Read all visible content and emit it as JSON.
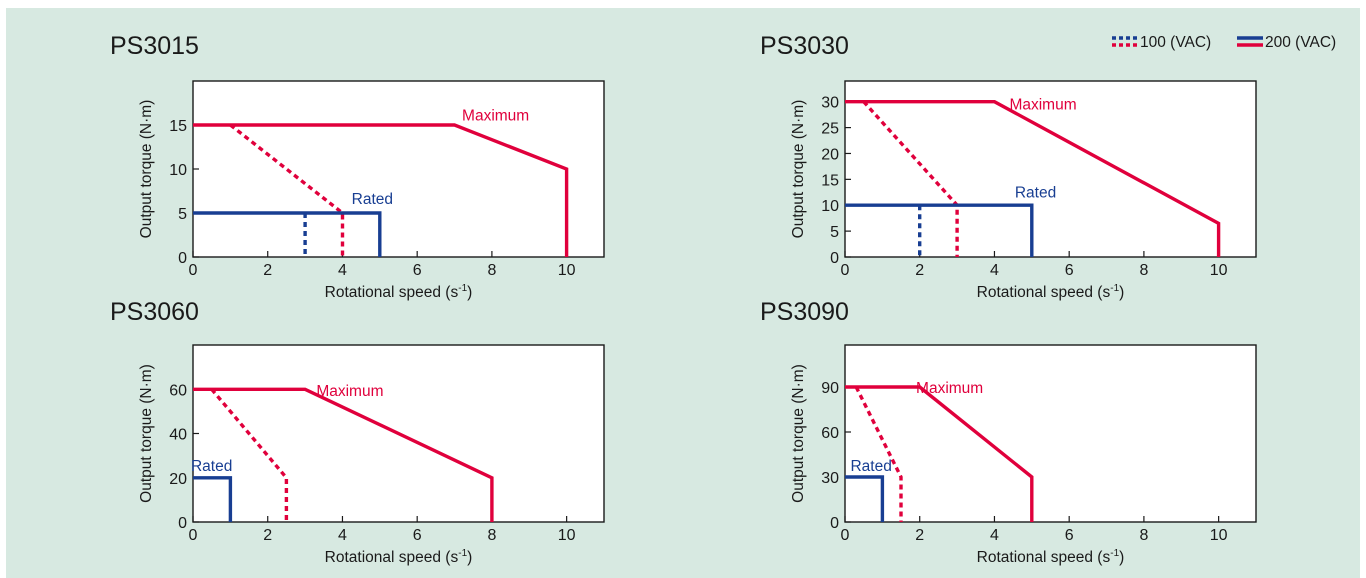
{
  "legend": {
    "dashed_label": "100 (VAC)",
    "solid_label": "200 (VAC)"
  },
  "colors": {
    "background": "#d7e9e1",
    "maximum": "#e0003c",
    "rated": "#183e92",
    "axis": "#1a1a1a"
  },
  "chart_data": [
    {
      "type": "line",
      "title": "PS3015",
      "xlabel": "Rotational speed (s",
      "xlabel_sup": "-1",
      "xlabel_suffix": ")",
      "ylabel": "Output torque (N·m)",
      "xlim": [
        0,
        11
      ],
      "ylim": [
        0,
        20
      ],
      "xticks": [
        0,
        2,
        4,
        6,
        8,
        10
      ],
      "yticks": [
        0,
        5,
        10,
        15
      ],
      "series": [
        {
          "name": "Maximum",
          "voltage": "200 (VAC)",
          "style": "solid",
          "color": "#e0003c",
          "x": [
            0,
            7,
            10,
            10
          ],
          "y": [
            15,
            15,
            10,
            0
          ]
        },
        {
          "voltage": "100 (VAC)",
          "style": "dashed",
          "color": "#e0003c",
          "x": [
            1,
            4,
            4
          ],
          "y": [
            15,
            5,
            0
          ]
        },
        {
          "name": "Rated",
          "voltage": "200 (VAC)",
          "style": "solid",
          "color": "#183e92",
          "x": [
            0,
            5,
            5
          ],
          "y": [
            5,
            5,
            0
          ]
        },
        {
          "voltage": "100 (VAC)",
          "style": "dashed",
          "color": "#183e92",
          "x": [
            3,
            3
          ],
          "y": [
            5,
            0
          ]
        }
      ],
      "annotations": [
        {
          "text": "Maximum",
          "x": 8.1,
          "y": 15.5,
          "color": "#e0003c"
        },
        {
          "text": "Rated",
          "x": 4.8,
          "y": 6.0,
          "color": "#183e92"
        }
      ]
    },
    {
      "type": "line",
      "title": "PS3030",
      "xlabel": "Rotational speed (s",
      "xlabel_sup": "-1",
      "xlabel_suffix": ")",
      "ylabel": "Output torque (N·m)",
      "xlim": [
        0,
        11
      ],
      "ylim": [
        0,
        34
      ],
      "xticks": [
        0,
        2,
        4,
        6,
        8,
        10
      ],
      "yticks": [
        0,
        5,
        10,
        15,
        20,
        25,
        30
      ],
      "series": [
        {
          "name": "Maximum",
          "voltage": "200 (VAC)",
          "style": "solid",
          "color": "#e0003c",
          "x": [
            0,
            4,
            10,
            10
          ],
          "y": [
            30,
            30,
            6.5,
            0
          ]
        },
        {
          "voltage": "100 (VAC)",
          "style": "dashed",
          "color": "#e0003c",
          "x": [
            0.5,
            3,
            3
          ],
          "y": [
            30,
            10,
            0
          ]
        },
        {
          "name": "Rated",
          "voltage": "200 (VAC)",
          "style": "solid",
          "color": "#183e92",
          "x": [
            0,
            5,
            5
          ],
          "y": [
            10,
            10,
            0
          ]
        },
        {
          "voltage": "100 (VAC)",
          "style": "dashed",
          "color": "#183e92",
          "x": [
            2,
            2
          ],
          "y": [
            10,
            0
          ]
        }
      ],
      "annotations": [
        {
          "text": "Maximum",
          "x": 5.3,
          "y": 28.5,
          "color": "#e0003c"
        },
        {
          "text": "Rated",
          "x": 5.1,
          "y": 11.5,
          "color": "#183e92"
        }
      ]
    },
    {
      "type": "line",
      "title": "PS3060",
      "xlabel": "Rotational speed (s",
      "xlabel_sup": "-1",
      "xlabel_suffix": ")",
      "ylabel": "Output torque (N·m)",
      "xlim": [
        0,
        11
      ],
      "ylim": [
        0,
        80
      ],
      "xticks": [
        0,
        2,
        4,
        6,
        8,
        10
      ],
      "yticks": [
        0,
        20,
        40,
        60
      ],
      "series": [
        {
          "name": "Maximum",
          "voltage": "200 (VAC)",
          "style": "solid",
          "color": "#e0003c",
          "x": [
            0,
            3,
            8,
            8
          ],
          "y": [
            60,
            60,
            20,
            0
          ]
        },
        {
          "voltage": "100 (VAC)",
          "style": "dashed",
          "color": "#e0003c",
          "x": [
            0.5,
            2.5,
            2.5
          ],
          "y": [
            60,
            20,
            0
          ]
        },
        {
          "name": "Rated",
          "voltage": "200 (VAC)",
          "style": "solid",
          "color": "#183e92",
          "x": [
            0,
            1,
            1
          ],
          "y": [
            20,
            20,
            0
          ]
        }
      ],
      "annotations": [
        {
          "text": "Maximum",
          "x": 4.2,
          "y": 57,
          "color": "#e0003c"
        },
        {
          "text": "Rated",
          "x": 0.5,
          "y": 23,
          "color": "#183e92"
        }
      ]
    },
    {
      "type": "line",
      "title": "PS3090",
      "xlabel": "Rotational speed (s",
      "xlabel_sup": "-1",
      "xlabel_suffix": ")",
      "ylabel": "Output torque (N·m)",
      "xlim": [
        0,
        11
      ],
      "ylim": [
        0,
        118
      ],
      "xticks": [
        0,
        2,
        4,
        6,
        8,
        10
      ],
      "yticks": [
        0,
        30,
        60,
        90
      ],
      "series": [
        {
          "name": "Maximum",
          "voltage": "200 (VAC)",
          "style": "solid",
          "color": "#e0003c",
          "x": [
            0,
            2,
            5,
            5
          ],
          "y": [
            90,
            90,
            30,
            0
          ]
        },
        {
          "voltage": "100 (VAC)",
          "style": "dashed",
          "color": "#e0003c",
          "x": [
            0.3,
            1.5,
            1.5
          ],
          "y": [
            90,
            30,
            0
          ]
        },
        {
          "name": "Rated",
          "voltage": "200 (VAC)",
          "style": "solid",
          "color": "#183e92",
          "x": [
            0,
            1,
            1
          ],
          "y": [
            30,
            30,
            0
          ]
        }
      ],
      "annotations": [
        {
          "text": "Maximum",
          "x": 2.8,
          "y": 86,
          "color": "#e0003c"
        },
        {
          "text": "Rated",
          "x": 0.7,
          "y": 34,
          "color": "#183e92"
        }
      ]
    }
  ]
}
